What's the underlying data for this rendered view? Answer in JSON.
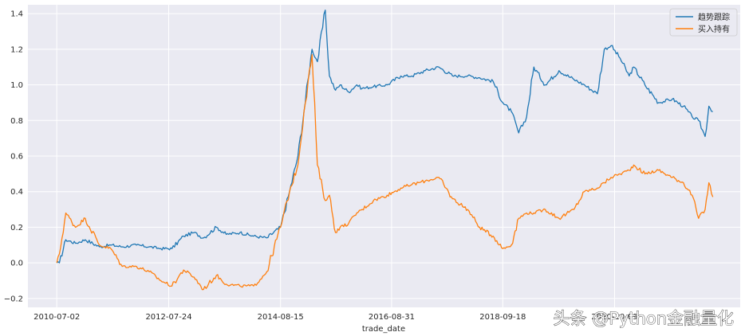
{
  "chart_data": {
    "type": "line",
    "xlabel": "trade_date",
    "ylabel": "",
    "xlim": [
      "2009-12-20",
      "2023-02-01"
    ],
    "ylim": [
      -0.25,
      1.45
    ],
    "grid": true,
    "legend_position": "top-right",
    "x_ticks": [
      "2010-07-02",
      "2012-07-24",
      "2014-08-15",
      "2016-08-31",
      "2018-09-18",
      "2020-10-09"
    ],
    "y_ticks": [
      -0.2,
      0.0,
      0.2,
      0.4,
      0.6,
      0.8,
      1.0,
      1.2,
      1.4
    ],
    "y_tick_labels": [
      "−0.2",
      "0.0",
      "0.2",
      "0.4",
      "0.6",
      "0.8",
      "1.0",
      "1.2",
      "1.4"
    ],
    "x": [
      "2010-07-02",
      "2010-07-20",
      "2010-09-01",
      "2010-11-05",
      "2011-01-10",
      "2011-04-15",
      "2011-07-01",
      "2011-09-15",
      "2011-12-20",
      "2012-03-15",
      "2012-06-01",
      "2012-08-15",
      "2012-11-01",
      "2013-01-10",
      "2013-03-15",
      "2013-06-10",
      "2013-08-15",
      "2013-11-15",
      "2014-02-15",
      "2014-05-15",
      "2014-08-15",
      "2014-10-15",
      "2014-12-10",
      "2015-01-20",
      "2015-03-15",
      "2015-04-20",
      "2015-06-12",
      "2015-07-10",
      "2015-08-20",
      "2015-09-20",
      "2015-11-15",
      "2016-01-10",
      "2016-02-15",
      "2016-05-01",
      "2016-08-01",
      "2016-11-01",
      "2017-01-15",
      "2017-04-15",
      "2017-07-15",
      "2017-10-15",
      "2018-01-25",
      "2018-04-15",
      "2018-07-15",
      "2018-09-18",
      "2018-11-15",
      "2019-01-03",
      "2019-02-25",
      "2019-04-15",
      "2019-07-01",
      "2019-10-01",
      "2020-01-10",
      "2020-03-20",
      "2020-06-15",
      "2020-08-01",
      "2020-09-15",
      "2020-11-15",
      "2021-01-15",
      "2021-02-15",
      "2021-05-01",
      "2021-08-01",
      "2021-11-01",
      "2022-01-15",
      "2022-03-15",
      "2022-04-27",
      "2022-06-10",
      "2022-07-05",
      "2022-08-01"
    ],
    "series": [
      {
        "name": "趋势跟踪",
        "color": "#1f77b4",
        "values": [
          0.0,
          0.0,
          0.13,
          0.11,
          0.13,
          0.09,
          0.1,
          0.09,
          0.1,
          0.09,
          0.08,
          0.08,
          0.15,
          0.17,
          0.14,
          0.2,
          0.16,
          0.17,
          0.15,
          0.14,
          0.2,
          0.4,
          0.6,
          0.85,
          1.2,
          1.13,
          1.42,
          1.05,
          0.97,
          1.0,
          0.96,
          1.0,
          0.98,
          0.99,
          1.0,
          1.05,
          1.05,
          1.08,
          1.1,
          1.05,
          1.05,
          1.04,
          1.02,
          0.9,
          0.85,
          0.73,
          0.82,
          1.1,
          1.0,
          1.08,
          1.03,
          1.0,
          0.95,
          1.2,
          1.22,
          1.15,
          1.05,
          1.1,
          1.0,
          0.9,
          0.92,
          0.88,
          0.82,
          0.8,
          0.71,
          0.88,
          0.85
        ]
      },
      {
        "name": "买入持有",
        "color": "#ff7f0e",
        "values": [
          0.0,
          0.05,
          0.28,
          0.2,
          0.25,
          0.1,
          0.08,
          -0.02,
          -0.02,
          -0.05,
          -0.1,
          -0.13,
          -0.04,
          -0.08,
          -0.15,
          -0.07,
          -0.12,
          -0.13,
          -0.13,
          -0.05,
          0.2,
          0.4,
          0.55,
          0.85,
          1.17,
          0.55,
          0.35,
          0.38,
          0.17,
          0.2,
          0.22,
          0.28,
          0.3,
          0.35,
          0.38,
          0.42,
          0.44,
          0.46,
          0.48,
          0.36,
          0.3,
          0.2,
          0.15,
          0.08,
          0.1,
          0.25,
          0.28,
          0.28,
          0.3,
          0.25,
          0.3,
          0.4,
          0.42,
          0.45,
          0.48,
          0.5,
          0.52,
          0.55,
          0.5,
          0.52,
          0.48,
          0.45,
          0.38,
          0.25,
          0.3,
          0.45,
          0.37
        ]
      }
    ]
  },
  "watermark": "头条 @Python金融量化"
}
